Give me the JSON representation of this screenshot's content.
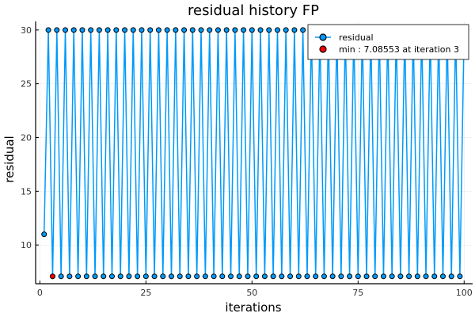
{
  "chart_data": {
    "type": "line",
    "title": "residual history FP",
    "xlabel": "iterations",
    "ylabel": "residual",
    "xlim": [
      -1,
      102
    ],
    "ylim": [
      6.4,
      30.8
    ],
    "xticks": [
      0,
      25,
      50,
      75,
      100
    ],
    "yticks": [
      10,
      15,
      20,
      25,
      30
    ],
    "grid": true,
    "legend_position": "top-right",
    "series": [
      {
        "name": "residual",
        "color": "#009af9",
        "marker": "circle",
        "pattern": {
          "first": [
            1,
            11.0
          ],
          "even_iterations_value": 30.0,
          "odd_iterations_value": 7.08553,
          "x_range": [
            1,
            100
          ]
        }
      },
      {
        "name": "min : 7.08553 at iteration 3",
        "color": "#ff0000",
        "marker": "circle",
        "points": [
          [
            3,
            7.08553
          ]
        ]
      }
    ]
  }
}
